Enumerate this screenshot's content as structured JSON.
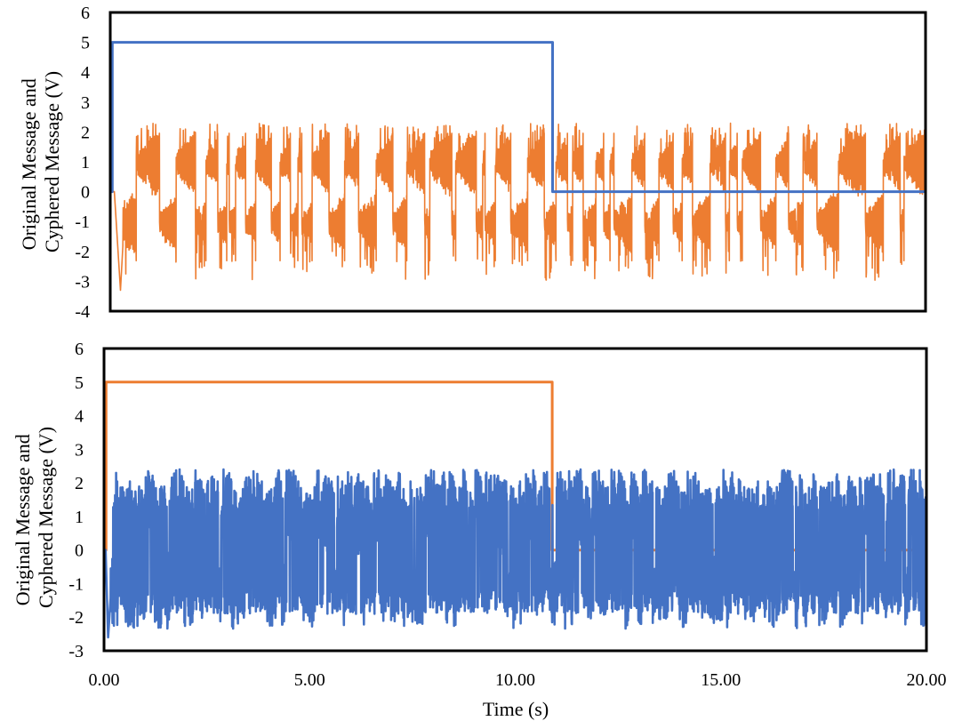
{
  "chart_data": [
    {
      "type": "line",
      "xlabel": "",
      "ylabel_lines": [
        "Original Message and",
        "Cyphered Message (V)"
      ],
      "xlim": [
        0,
        20
      ],
      "ylim": [
        -4,
        6
      ],
      "yticks": [
        -4,
        -3,
        -2,
        -1,
        0,
        1,
        2,
        3,
        4,
        5,
        6
      ],
      "ytick_labels": [
        "-4",
        "-3",
        "-2",
        "-1",
        "0",
        "1",
        "2",
        "3",
        "4",
        "5",
        "6"
      ],
      "grid": false,
      "series": [
        {
          "kind": "square",
          "color": "#4472C4",
          "x": [
            0,
            0.05,
            0.05,
            10.85,
            10.85,
            20
          ],
          "y": [
            0,
            0,
            5,
            5,
            0,
            0
          ]
        },
        {
          "kind": "chaotic",
          "color": "#ED7D31",
          "t_start": 0,
          "t_end": 20,
          "y_min": -3.3,
          "y_max": 2.3,
          "first_minimum": {
            "x": 0.25,
            "y": -3.3
          }
        }
      ]
    },
    {
      "type": "line",
      "xlabel": "Time (s)",
      "ylabel_lines": [
        "Original Message and",
        "Cyphered Message (V)"
      ],
      "xlim": [
        0,
        20
      ],
      "ylim": [
        -3,
        6
      ],
      "yticks": [
        -3,
        -2,
        -1,
        0,
        1,
        2,
        3,
        4,
        5,
        6
      ],
      "ytick_labels": [
        "-3",
        "-2",
        "-1",
        "0",
        "1",
        "2",
        "3",
        "4",
        "5",
        "6"
      ],
      "xticks": [
        0,
        5,
        10,
        15,
        20
      ],
      "xtick_labels": [
        "0.00",
        "5.00",
        "10.00",
        "15.00",
        "20.00"
      ],
      "grid": false,
      "series": [
        {
          "kind": "square",
          "color": "#ED7D31",
          "x": [
            0,
            0.05,
            0.05,
            10.9,
            10.9,
            20
          ],
          "y": [
            0,
            0,
            5,
            5,
            0,
            0
          ]
        },
        {
          "kind": "chaotic",
          "color": "#4472C4",
          "t_start": 0,
          "t_end": 20,
          "y_min": -2.6,
          "y_max": 2.4,
          "first_minimum": {
            "x": 0.1,
            "y": -2.6
          }
        }
      ]
    }
  ]
}
